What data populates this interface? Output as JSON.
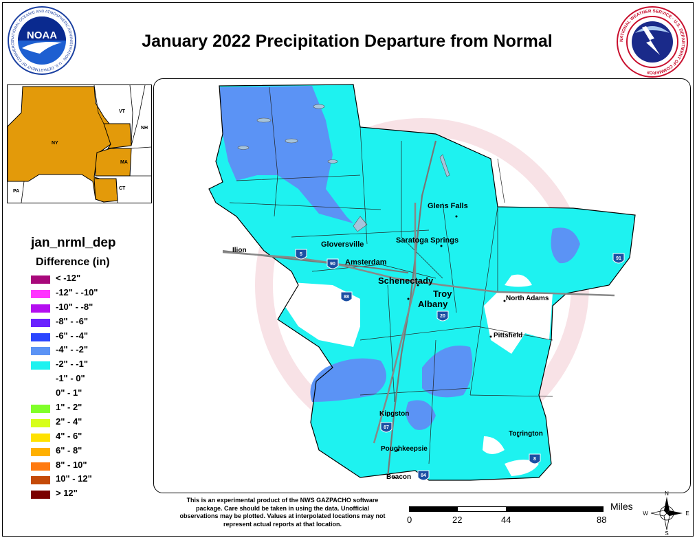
{
  "title": "January 2022 Precipitation Departure from Normal",
  "logos": {
    "noaa": {
      "center_text": "NOAA",
      "ring_text": "NATIONAL OCEANIC AND ATMOSPHERIC ADMINISTRATION · U.S. DEPARTMENT OF COMMERCE"
    },
    "nws": {
      "ring_text": "NATIONAL WEATHER SERVICE · U.S. DEPARTMENT OF COMMERCE"
    }
  },
  "inset": {
    "labels": {
      "ny": "NY",
      "vt": "VT",
      "nh": "NH",
      "ma": "MA",
      "ct": "CT",
      "pa": "PA"
    },
    "highlight_color": "#e39a0a"
  },
  "legend": {
    "field": "jan_nrml_dep",
    "subtitle": "Difference (in)",
    "items": [
      {
        "label": "< -12\"",
        "color": "#a8087a"
      },
      {
        "label": "-12\" - -10\"",
        "color": "#ff33ff"
      },
      {
        "label": "-10\" - -8\"",
        "color": "#b40ef0"
      },
      {
        "label": "-8\" - -6\"",
        "color": "#6a22ff"
      },
      {
        "label": "-6\" - -4\"",
        "color": "#2b45ff"
      },
      {
        "label": "-4\" - -2\"",
        "color": "#5b93f5"
      },
      {
        "label": "-2\" - -1\"",
        "color": "#1ef2f0"
      },
      {
        "label": "-1\" - 0\"",
        "color": "#ffffff"
      },
      {
        "label": "0\" - 1\"",
        "color": "#ffffff"
      },
      {
        "label": "1\" - 2\"",
        "color": "#80ff29"
      },
      {
        "label": "2\" - 4\"",
        "color": "#d7ff1a"
      },
      {
        "label": "4\" - 6\"",
        "color": "#ffe100"
      },
      {
        "label": "6\" - 8\"",
        "color": "#ffb000"
      },
      {
        "label": "8\" - 10\"",
        "color": "#ff7a10"
      },
      {
        "label": "10\" - 12\"",
        "color": "#c44a08"
      },
      {
        "label": "> 12\"",
        "color": "#7a0000"
      }
    ]
  },
  "cities": {
    "glens_falls": "Glens Falls",
    "ilion": "Ilion",
    "gloversville": "Gloversville",
    "saratoga": "Saratoga Springs",
    "amsterdam": "Amsterdam",
    "schenectady": "Schenectady",
    "troy": "Troy",
    "albany": "Albany",
    "north_adams": "North Adams",
    "pittsfield": "Pittsfield",
    "kingston": "Kingston",
    "poughkeepsie": "Poughkeepsie",
    "torrington": "Torrington",
    "beacon": "Beacon"
  },
  "highways": {
    "i5": "5",
    "i90": "90",
    "i88": "88",
    "i20": "20",
    "i91": "91",
    "i87": "87",
    "i8": "8",
    "i84": "84"
  },
  "note": "This is an experimental product of the NWS GAZPACHO software package. Care should be taken in using the data. Unofficial observations may be plotted. Values at interpolated locations may not represent actual reports at that location.",
  "scale": {
    "unit": "Miles",
    "ticks": [
      "0",
      "22",
      "44",
      "88"
    ]
  },
  "compass": {
    "n": "N",
    "s": "S",
    "e": "E",
    "w": "W"
  },
  "colors": {
    "cyan": "#1ef2f0",
    "blue": "#5b93f5",
    "lake": "#a6c4dc"
  }
}
